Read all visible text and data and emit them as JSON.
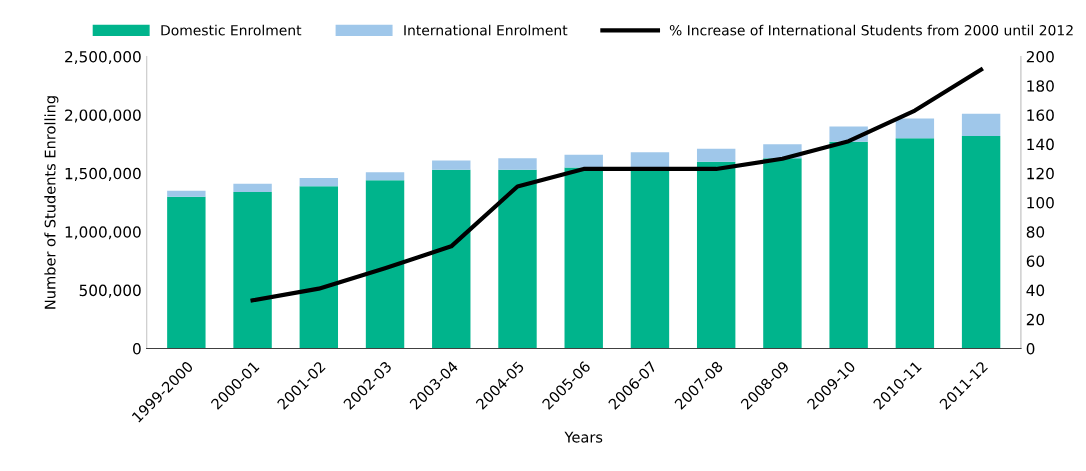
{
  "chart_data": {
    "type": "bar",
    "stacked": true,
    "xlabel": "Years",
    "ylabel": "Number of Students Enrolling",
    "categories": [
      "1999-2000",
      "2000-01",
      "2001-02",
      "2002-03",
      "2003-04",
      "2004-05",
      "2005-06",
      "2006-07",
      "2007-08",
      "2008-09",
      "2009-10",
      "2010-11",
      "2011-12"
    ],
    "series": [
      {
        "name": "Domestic Enrolment",
        "color": "#00b48c",
        "values": [
          1300000,
          1340000,
          1390000,
          1440000,
          1530000,
          1530000,
          1550000,
          1540000,
          1600000,
          1630000,
          1770000,
          1800000,
          1820000
        ]
      },
      {
        "name": "International Enrolment",
        "color": "#9fc7ea",
        "values": [
          50000,
          70000,
          70000,
          70000,
          80000,
          100000,
          110000,
          140000,
          110000,
          120000,
          130000,
          170000,
          190000
        ]
      },
      {
        "name": "% Increase of International Students from 2000 until 2012",
        "type": "line",
        "axis": "y2",
        "color": "#000000",
        "values": [
          null,
          33,
          41,
          55,
          70,
          111,
          123,
          123,
          123,
          130,
          142,
          163,
          191
        ]
      }
    ],
    "ylim": [
      0,
      2500000
    ],
    "yticks": [
      {
        "value": 0,
        "label": "0"
      },
      {
        "value": 500000,
        "label": "500,000"
      },
      {
        "value": 1000000,
        "label": "1,000,000"
      },
      {
        "value": 1500000,
        "label": "1,500,000"
      },
      {
        "value": 2000000,
        "label": "2,000,000"
      },
      {
        "value": 2500000,
        "label": "2,500,000"
      }
    ],
    "y2lim": [
      0,
      200
    ],
    "y2ticks": [
      0,
      20,
      40,
      60,
      80,
      100,
      120,
      140,
      160,
      180,
      200
    ],
    "grid": false,
    "legend": "top"
  }
}
